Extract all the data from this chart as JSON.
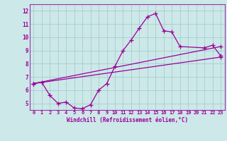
{
  "xlabel": "Windchill (Refroidissement éolien,°C)",
  "bg_color": "#cce8e8",
  "grid_color": "#aacccc",
  "line_color": "#990099",
  "spine_color": "#9933aa",
  "xlim": [
    -0.5,
    23.5
  ],
  "ylim": [
    4.5,
    12.5
  ],
  "xticks": [
    0,
    1,
    2,
    3,
    4,
    5,
    6,
    7,
    8,
    9,
    10,
    11,
    12,
    13,
    14,
    15,
    16,
    17,
    18,
    19,
    20,
    21,
    22,
    23
  ],
  "yticks": [
    5,
    6,
    7,
    8,
    9,
    10,
    11,
    12
  ],
  "line1_x": [
    0,
    1,
    2,
    3,
    4,
    5,
    6,
    7,
    8,
    9,
    10,
    11,
    12,
    13,
    14,
    15,
    16,
    17,
    18,
    21,
    22,
    23
  ],
  "line1_y": [
    6.5,
    6.6,
    5.6,
    5.0,
    5.1,
    4.65,
    4.6,
    4.9,
    6.0,
    6.5,
    7.8,
    9.0,
    9.8,
    10.7,
    11.55,
    11.8,
    10.5,
    10.4,
    9.3,
    9.2,
    9.4,
    8.6
  ],
  "line2_x": [
    0,
    23
  ],
  "line2_y": [
    6.5,
    8.5
  ],
  "line3_x": [
    0,
    23
  ],
  "line3_y": [
    6.5,
    9.3
  ],
  "tick_fontsize": 5,
  "xlabel_fontsize": 5.5
}
